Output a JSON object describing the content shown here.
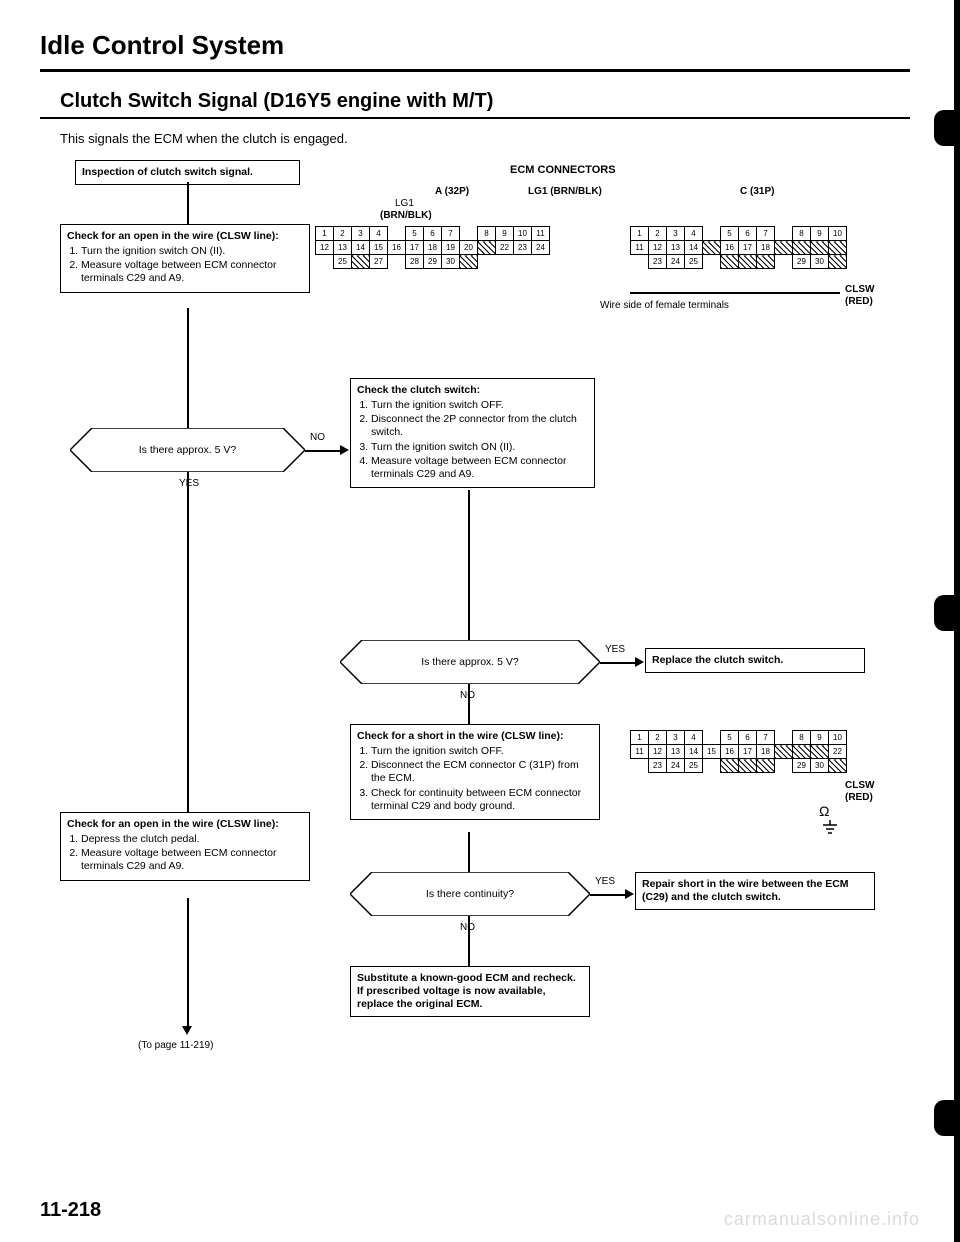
{
  "page": {
    "title": "Idle Control System",
    "subtitle": "Clutch Switch Signal (D16Y5 engine with M/T)",
    "description": "This signals the ECM when the clutch is engaged.",
    "page_number": "11-218",
    "watermark": "carmanualsonline.info"
  },
  "labels": {
    "ecm_connectors": "ECM CONNECTORS",
    "a32p": "A (32P)",
    "lg1_brnblk_a": "LG1 (BRN/BLK)",
    "lg1_brnblk_b": "LG1 (BRN/BLK)",
    "c31p": "C (31P)",
    "wire_side": "Wire side of female terminals",
    "clsw": "CLSW",
    "red": "(RED)",
    "yes": "YES",
    "no": "NO",
    "to_page": "(To page 11-219)"
  },
  "nodes": {
    "n1": {
      "title": "Inspection of clutch switch signal."
    },
    "n2": {
      "title": "Check for an open in the wire (CLSW line):",
      "steps": [
        "Turn the ignition switch ON (II).",
        "Measure voltage between ECM connector terminals C29 and A9."
      ]
    },
    "d1": {
      "text": "Is there approx. 5 V?"
    },
    "n3": {
      "title": "Check the clutch switch:",
      "steps": [
        "Turn the ignition switch OFF.",
        "Disconnect the 2P connector from the clutch switch.",
        "Turn the ignition switch ON (II).",
        "Measure voltage between ECM connector terminals C29 and A9."
      ]
    },
    "d2": {
      "text": "Is there approx. 5 V?"
    },
    "r1": {
      "title": "Replace the clutch switch."
    },
    "n4": {
      "title": "Check for a short in the wire (CLSW line):",
      "steps": [
        "Turn the ignition switch OFF.",
        "Disconnect the ECM connector C (31P) from the ECM.",
        "Check for continuity between ECM connector terminal C29 and body ground."
      ]
    },
    "n5": {
      "title": "Check for an open in the wire (CLSW line):",
      "steps": [
        "Depress the clutch pedal.",
        "Measure voltage between ECM connector terminals C29 and A9."
      ]
    },
    "d3": {
      "text": "Is there continuity?"
    },
    "r2": {
      "title": "Repair short in the wire between the ECM (C29) and the clutch switch."
    },
    "n6": {
      "title": "Substitute a known-good ECM and recheck. If prescribed voltage is now available, replace the original ECM."
    }
  },
  "connectors": {
    "A": {
      "rows": [
        [
          "1",
          "2",
          "3",
          "4",
          "",
          "5",
          "6",
          "7",
          "",
          "8",
          "9",
          "10",
          "11"
        ],
        [
          "12",
          "13",
          "14",
          "15",
          "16",
          "17",
          "18",
          "19",
          "20",
          "h",
          "22",
          "23",
          "24"
        ],
        [
          "",
          "25",
          "h",
          "27",
          "",
          "28",
          "29",
          "30",
          "h",
          "",
          "",
          "",
          ""
        ]
      ]
    },
    "C": {
      "rows": [
        [
          "1",
          "2",
          "3",
          "4",
          "",
          "5",
          "6",
          "7",
          "",
          "8",
          "9",
          "10"
        ],
        [
          "11",
          "12",
          "13",
          "14",
          "h",
          "16",
          "17",
          "18",
          "h",
          "h",
          "h",
          "h"
        ],
        [
          "",
          "23",
          "24",
          "25",
          "",
          "h",
          "h",
          "h",
          "",
          "29",
          "30",
          "h"
        ]
      ]
    },
    "C2": {
      "rows": [
        [
          "1",
          "2",
          "3",
          "4",
          "",
          "5",
          "6",
          "7",
          "",
          "8",
          "9",
          "10"
        ],
        [
          "11",
          "12",
          "13",
          "14",
          "15",
          "16",
          "17",
          "18",
          "h",
          "h",
          "h",
          "22"
        ],
        [
          "",
          "23",
          "24",
          "25",
          "",
          "h",
          "h",
          "h",
          "",
          "29",
          "30",
          "h"
        ]
      ]
    }
  }
}
